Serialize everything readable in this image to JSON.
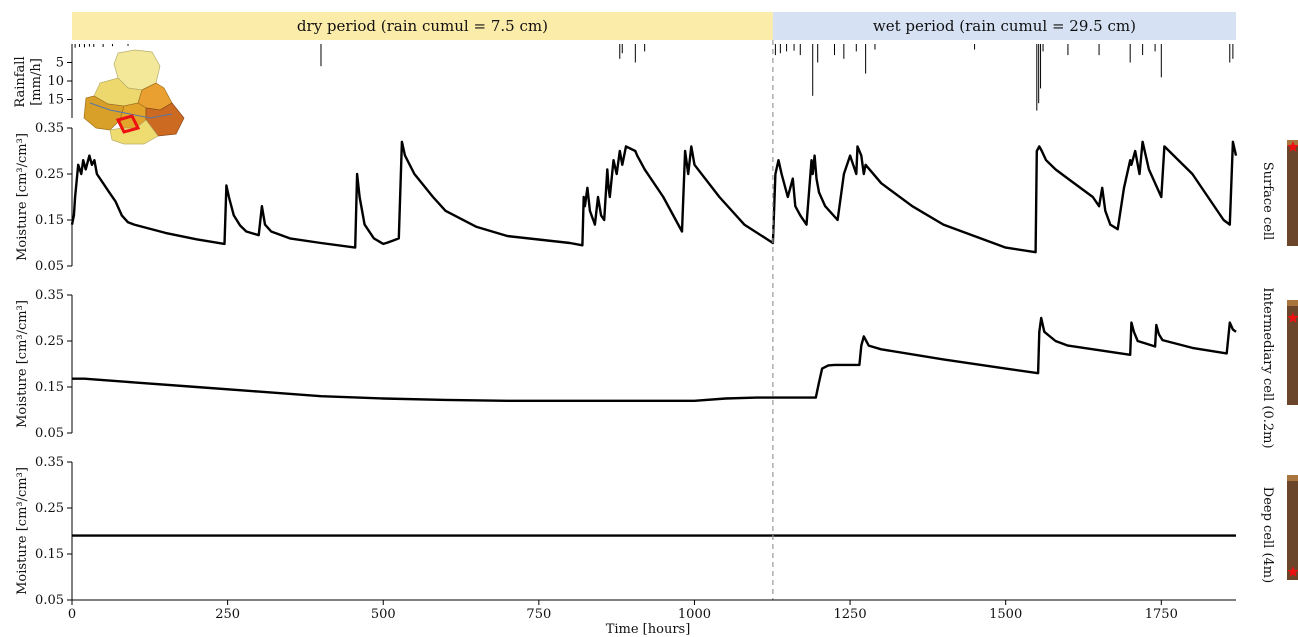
{
  "periods": [
    {
      "label": "dry period (rain cumul = 7.5 cm)",
      "start": 0,
      "end": 1126,
      "color": "#fcecaa"
    },
    {
      "label": "wet period (rain cumul = 29.5 cm)",
      "start": 1126,
      "end": 1870,
      "color": "#d6e2f4"
    }
  ],
  "xaxis": {
    "label": "Time [hours]",
    "range": [
      0,
      1870
    ],
    "ticks": [
      0,
      250,
      500,
      750,
      1000,
      1250,
      1500,
      1750
    ],
    "tick_labels": [
      "0",
      "250",
      "500",
      "750",
      "1000",
      "1250",
      "1500",
      "1750"
    ],
    "divider": 1126
  },
  "rainfall_axis": {
    "label_line1": "Rainfall",
    "label_line2": "[mm/h]",
    "ticks": [
      5,
      10,
      15
    ],
    "tick_labels": [
      "5",
      "10",
      "15"
    ],
    "range": [
      0,
      20
    ]
  },
  "moisture_ticks": [
    0.05,
    0.15,
    0.25,
    0.35
  ],
  "moisture_tick_labels": [
    "0.05",
    "0.15",
    "0.25",
    "0.35"
  ],
  "moisture_range": [
    0.05,
    0.35
  ],
  "panels": [
    {
      "side_label": "Surface cell",
      "ylabel": "Moisture [cm³/cm³]"
    },
    {
      "side_label": "Intermediary cell (0.2m)",
      "ylabel": "Moisture [cm³/cm³]"
    },
    {
      "side_label": "Deep cell (4m)",
      "ylabel": "Moisture [cm³/cm³]"
    }
  ],
  "colors": {
    "soil": "#6b4529",
    "soil_top": "#a8763c",
    "marker": "#ee1111",
    "divider": "#999999"
  },
  "chart_data": [
    {
      "type": "bar",
      "title": "",
      "xlabel": "",
      "ylabel": "Rainfall [mm/h]",
      "ylim": [
        20,
        0
      ],
      "x": [
        5,
        12,
        20,
        28,
        35,
        50,
        65,
        90,
        400,
        880,
        884,
        905,
        920,
        1130,
        1138,
        1148,
        1160,
        1170,
        1190,
        1198,
        1225,
        1240,
        1260,
        1275,
        1290,
        1450,
        1550,
        1553,
        1556,
        1560,
        1600,
        1650,
        1700,
        1720,
        1740,
        1750,
        1860,
        1865
      ],
      "values": [
        1,
        0.8,
        0.9,
        0.7,
        0.8,
        0.8,
        0.6,
        0.5,
        6,
        4,
        2.5,
        5,
        2,
        3,
        2.5,
        2,
        1.8,
        3,
        14,
        5,
        3,
        4,
        2,
        8,
        1.5,
        1.5,
        18,
        16,
        12,
        2,
        3,
        3,
        5,
        3,
        2,
        9,
        5,
        4
      ]
    },
    {
      "type": "line",
      "title": "",
      "xlabel": "",
      "ylabel": "Moisture [cm³/cm³]",
      "ylim": [
        0.05,
        0.35
      ],
      "series": [
        {
          "x": [
            0,
            3,
            5,
            10,
            15,
            18,
            22,
            28,
            32,
            36,
            40,
            50,
            60,
            70,
            80,
            90,
            100,
            150,
            200,
            245,
            248,
            252,
            260,
            270,
            280,
            300,
            305,
            310,
            320,
            350,
            400,
            455,
            458,
            462,
            470,
            485,
            500,
            505,
            515,
            525,
            530,
            535,
            550,
            580,
            600,
            650,
            700,
            800,
            820,
            822,
            824,
            828,
            832,
            840,
            845,
            850,
            855,
            860,
            862,
            864,
            870,
            875,
            880,
            884,
            890,
            905,
            908,
            912,
            920,
            950,
            980,
            985,
            990,
            995,
            1000,
            1040,
            1080,
            1126,
            1130,
            1135,
            1140,
            1150,
            1158,
            1162,
            1170,
            1180,
            1188,
            1190,
            1193,
            1196,
            1200,
            1210,
            1230,
            1240,
            1250,
            1260,
            1262,
            1268,
            1272,
            1275,
            1300,
            1350,
            1400,
            1500,
            1548,
            1550,
            1554,
            1558,
            1565,
            1580,
            1600,
            1640,
            1650,
            1655,
            1660,
            1668,
            1680,
            1690,
            1700,
            1702,
            1708,
            1715,
            1720,
            1730,
            1750,
            1755,
            1800,
            1850,
            1860,
            1865,
            1870
          ],
          "y": [
            0.14,
            0.16,
            0.2,
            0.27,
            0.25,
            0.28,
            0.26,
            0.29,
            0.27,
            0.28,
            0.25,
            0.23,
            0.21,
            0.19,
            0.16,
            0.145,
            0.14,
            0.122,
            0.108,
            0.098,
            0.225,
            0.2,
            0.16,
            0.138,
            0.125,
            0.117,
            0.18,
            0.14,
            0.125,
            0.11,
            0.1,
            0.09,
            0.25,
            0.2,
            0.14,
            0.11,
            0.098,
            0.1,
            0.105,
            0.11,
            0.32,
            0.29,
            0.25,
            0.2,
            0.17,
            0.135,
            0.115,
            0.1,
            0.095,
            0.2,
            0.18,
            0.22,
            0.17,
            0.14,
            0.2,
            0.16,
            0.15,
            0.26,
            0.22,
            0.2,
            0.28,
            0.25,
            0.3,
            0.27,
            0.31,
            0.3,
            0.29,
            0.28,
            0.26,
            0.2,
            0.125,
            0.3,
            0.25,
            0.31,
            0.27,
            0.2,
            0.14,
            0.1,
            0.25,
            0.28,
            0.25,
            0.2,
            0.24,
            0.18,
            0.16,
            0.14,
            0.28,
            0.25,
            0.29,
            0.24,
            0.21,
            0.18,
            0.15,
            0.25,
            0.29,
            0.25,
            0.31,
            0.29,
            0.25,
            0.27,
            0.23,
            0.18,
            0.14,
            0.09,
            0.08,
            0.3,
            0.31,
            0.3,
            0.28,
            0.26,
            0.24,
            0.2,
            0.18,
            0.22,
            0.17,
            0.14,
            0.13,
            0.22,
            0.28,
            0.27,
            0.3,
            0.25,
            0.32,
            0.26,
            0.2,
            0.31,
            0.25,
            0.15,
            0.14,
            0.32,
            0.29
          ]
        }
      ]
    },
    {
      "type": "line",
      "title": "",
      "xlabel": "",
      "ylabel": "Moisture [cm³/cm³]",
      "ylim": [
        0.05,
        0.35
      ],
      "series": [
        {
          "x": [
            0,
            20,
            100,
            200,
            300,
            400,
            500,
            600,
            700,
            800,
            900,
            1000,
            1050,
            1100,
            1126,
            1150,
            1195,
            1200,
            1205,
            1215,
            1225,
            1240,
            1265,
            1268,
            1272,
            1280,
            1300,
            1400,
            1500,
            1552,
            1554,
            1557,
            1562,
            1580,
            1600,
            1700,
            1702,
            1706,
            1712,
            1740,
            1742,
            1746,
            1752,
            1800,
            1855,
            1860,
            1865,
            1870
          ],
          "y": [
            0.168,
            0.168,
            0.16,
            0.15,
            0.14,
            0.13,
            0.125,
            0.122,
            0.12,
            0.12,
            0.12,
            0.12,
            0.125,
            0.127,
            0.127,
            0.127,
            0.127,
            0.16,
            0.19,
            0.197,
            0.198,
            0.198,
            0.198,
            0.24,
            0.26,
            0.24,
            0.232,
            0.21,
            0.19,
            0.18,
            0.27,
            0.3,
            0.27,
            0.25,
            0.24,
            0.22,
            0.29,
            0.27,
            0.25,
            0.238,
            0.285,
            0.265,
            0.252,
            0.235,
            0.223,
            0.29,
            0.275,
            0.27
          ]
        }
      ]
    },
    {
      "type": "line",
      "title": "",
      "xlabel": "Time [hours]",
      "ylabel": "Moisture [cm³/cm³]",
      "ylim": [
        0.05,
        0.35
      ],
      "series": [
        {
          "x": [
            0,
            1870
          ],
          "y": [
            0.19,
            0.19
          ]
        }
      ]
    }
  ]
}
